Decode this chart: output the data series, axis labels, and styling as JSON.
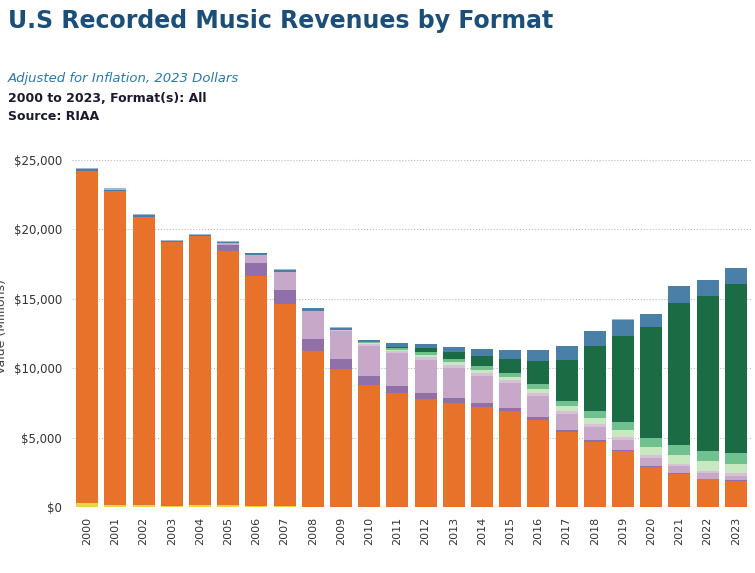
{
  "title": "U.S Recorded Music Revenues by Format",
  "subtitle1": "Adjusted for Inflation, 2023 Dollars",
  "subtitle2": "2000 to 2023, Format(s): All",
  "subtitle3": "Source: RIAA",
  "ylabel": "Value (Millions)",
  "years": [
    2000,
    2001,
    2002,
    2003,
    2004,
    2005,
    2006,
    2007,
    2008,
    2009,
    2010,
    2011,
    2012,
    2013,
    2014,
    2015,
    2016,
    2017,
    2018,
    2019,
    2020,
    2021,
    2022,
    2023
  ],
  "segments": {
    "CD": {
      "color": "#E8722A",
      "values": [
        23900,
        22600,
        20800,
        19000,
        19400,
        18300,
        16600,
        14600,
        11200,
        9900,
        8800,
        8200,
        7800,
        7500,
        7200,
        6900,
        6300,
        5400,
        4700,
        4000,
        2900,
        2400,
        2000,
        1900
      ]
    },
    "Vinyl": {
      "color": "#4A7FA8",
      "values": [
        130,
        120,
        100,
        80,
        80,
        90,
        110,
        150,
        170,
        170,
        200,
        240,
        310,
        400,
        490,
        620,
        800,
        1000,
        1100,
        1150,
        900,
        1250,
        1100,
        1150
      ]
    },
    "Other_physical": {
      "color": "#A0B8D0",
      "values": [
        100,
        80,
        70,
        60,
        50,
        40,
        30,
        20,
        15,
        10,
        8,
        6,
        5,
        5,
        5,
        5,
        5,
        5,
        5,
        5,
        5,
        5,
        5,
        5
      ]
    },
    "Yellow_physical": {
      "color": "#E8D840",
      "values": [
        300,
        150,
        120,
        100,
        120,
        160,
        80,
        60,
        40,
        30,
        20,
        15,
        10,
        8,
        8,
        8,
        8,
        8,
        8,
        8,
        8,
        8,
        8,
        8
      ]
    },
    "Ringtones": {
      "color": "#9070A8",
      "values": [
        0,
        0,
        0,
        0,
        0,
        400,
        900,
        1000,
        900,
        750,
        600,
        500,
        400,
        320,
        260,
        200,
        160,
        120,
        90,
        70,
        55,
        45,
        35,
        28
      ]
    },
    "Digital_download": {
      "color": "#C8A8C8",
      "values": [
        0,
        0,
        0,
        0,
        0,
        160,
        600,
        1300,
        2000,
        2000,
        2200,
        2350,
        2400,
        2200,
        2000,
        1800,
        1500,
        1150,
        950,
        750,
        580,
        480,
        400,
        330
      ]
    },
    "SoundExchange_digital": {
      "color": "#D8C0D8",
      "values": [
        0,
        0,
        0,
        0,
        0,
        0,
        0,
        0,
        0,
        50,
        100,
        150,
        180,
        200,
        220,
        230,
        230,
        220,
        210,
        200,
        190,
        180,
        170,
        160
      ]
    },
    "Free_ad_streaming": {
      "color": "#C8E8C0",
      "values": [
        0,
        0,
        0,
        0,
        0,
        0,
        0,
        0,
        0,
        30,
        80,
        130,
        170,
        200,
        220,
        260,
        310,
        380,
        450,
        530,
        590,
        640,
        680,
        700
      ]
    },
    "Streaming_other2": {
      "color": "#70C090",
      "values": [
        0,
        0,
        0,
        0,
        0,
        0,
        0,
        0,
        0,
        0,
        60,
        120,
        180,
        230,
        260,
        290,
        330,
        400,
        500,
        600,
        680,
        720,
        740,
        760
      ]
    },
    "Paid_streaming": {
      "color": "#1B6B45",
      "values": [
        0,
        0,
        0,
        0,
        0,
        0,
        0,
        0,
        0,
        0,
        0,
        100,
        300,
        500,
        700,
        1000,
        1700,
        2900,
        4700,
        6200,
        8000,
        10200,
        11200,
        12200
      ]
    }
  },
  "ylim": [
    0,
    26000
  ],
  "yticks": [
    0,
    5000,
    10000,
    15000,
    20000,
    25000
  ],
  "ytick_labels": [
    "$0",
    "$5,000",
    "$10,000",
    "$15,000",
    "$20,000",
    "$25,000"
  ],
  "title_color": "#1B4F7A",
  "subtitle1_color": "#2878B0",
  "subtitle23_color": "#1A1A2E",
  "background_color": "#FFFFFF",
  "grid_color": "#BBBBBB"
}
